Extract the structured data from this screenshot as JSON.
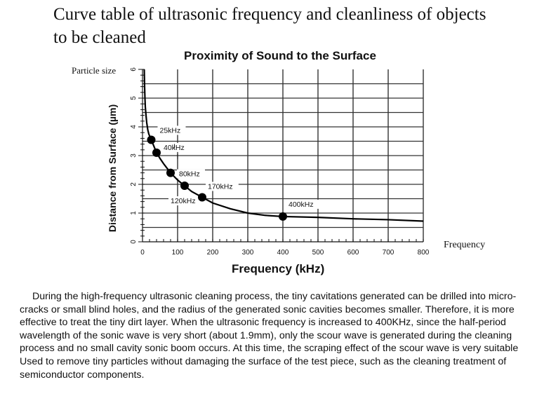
{
  "page": {
    "title": "Curve table of ultrasonic frequency and cleanliness of objects to be cleaned",
    "side_y_label": "Particle size",
    "side_x_label": "Frequency",
    "paragraph": "During the high-frequency ultrasonic cleaning process, the tiny cavitations generated can be drilled into micro-cracks or small blind holes, and the radius of the generated sonic cavities becomes smaller. Therefore, it is more effective to treat the tiny dirt layer. When the ultrasonic frequency is increased to 400KHz, since the half-period wavelength of the sonic wave is very short (about 1.9mm), only the scour wave is generated during the cleaning process and no small cavity sonic boom occurs. At this time, the scraping effect of the scour wave is very suitable Used to remove tiny particles without damaging the surface of the test piece, such as the cleaning treatment of semiconductor components."
  },
  "chart_data": {
    "type": "line",
    "title": "Proximity of Sound to the Surface",
    "xlabel": "Frequency (kHz)",
    "ylabel": "Distance from Surface (µm)",
    "xlim": [
      0,
      800
    ],
    "ylim": [
      0,
      6
    ],
    "xticks": [
      0,
      100,
      200,
      300,
      400,
      500,
      600,
      700,
      800
    ],
    "yticks": [
      0,
      1,
      2,
      3,
      4,
      5,
      6
    ],
    "grid": true,
    "line_color": "#000000",
    "curve": {
      "x": [
        5,
        6,
        7,
        8,
        10,
        12,
        15,
        18,
        25,
        30,
        40,
        50,
        60,
        80,
        100,
        120,
        140,
        170,
        200,
        250,
        300,
        350,
        400,
        500,
        600,
        700,
        800
      ],
      "y": [
        6.0,
        5.4,
        5.0,
        4.7,
        4.4,
        4.15,
        3.9,
        3.75,
        3.55,
        3.4,
        3.1,
        2.9,
        2.72,
        2.4,
        2.15,
        1.95,
        1.75,
        1.55,
        1.35,
        1.15,
        1.0,
        0.92,
        0.88,
        0.85,
        0.8,
        0.77,
        0.72
      ]
    },
    "points": [
      {
        "label": "25kHz",
        "x": 25,
        "y": 3.55
      },
      {
        "label": "40kHz",
        "x": 40,
        "y": 3.1
      },
      {
        "label": "80kHz",
        "x": 80,
        "y": 2.4
      },
      {
        "label": "120kHz",
        "x": 120,
        "y": 1.95
      },
      {
        "label": "170kHz",
        "x": 170,
        "y": 1.55
      },
      {
        "label": "400kHz",
        "x": 400,
        "y": 0.88
      }
    ]
  }
}
